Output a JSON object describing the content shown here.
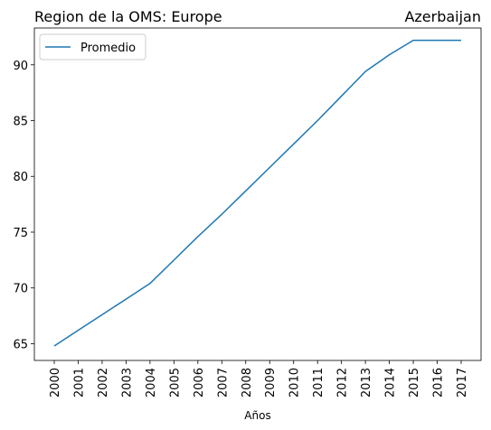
{
  "chart_data": {
    "type": "line",
    "title_left": "Region de la OMS: Europe",
    "title_right": "Azerbaijan",
    "xlabel": "Años",
    "ylabel": "",
    "categories": [
      "2000",
      "2001",
      "2002",
      "2003",
      "2004",
      "2005",
      "2006",
      "2007",
      "2008",
      "2009",
      "2010",
      "2011",
      "2012",
      "2013",
      "2014",
      "2015",
      "2016",
      "2017"
    ],
    "series": [
      {
        "name": "Promedio",
        "color": "#1f77b4",
        "values": [
          64.8,
          66.2,
          67.6,
          69.0,
          70.4,
          72.5,
          74.6,
          76.6,
          78.7,
          80.8,
          82.9,
          85.0,
          87.2,
          89.4,
          90.9,
          92.2,
          92.2,
          92.2
        ]
      }
    ],
    "ylim": [
      63.5,
      93.3
    ],
    "yticks": [
      65,
      70,
      75,
      80,
      85,
      90
    ],
    "grid": false,
    "legend_position": "top-left"
  }
}
